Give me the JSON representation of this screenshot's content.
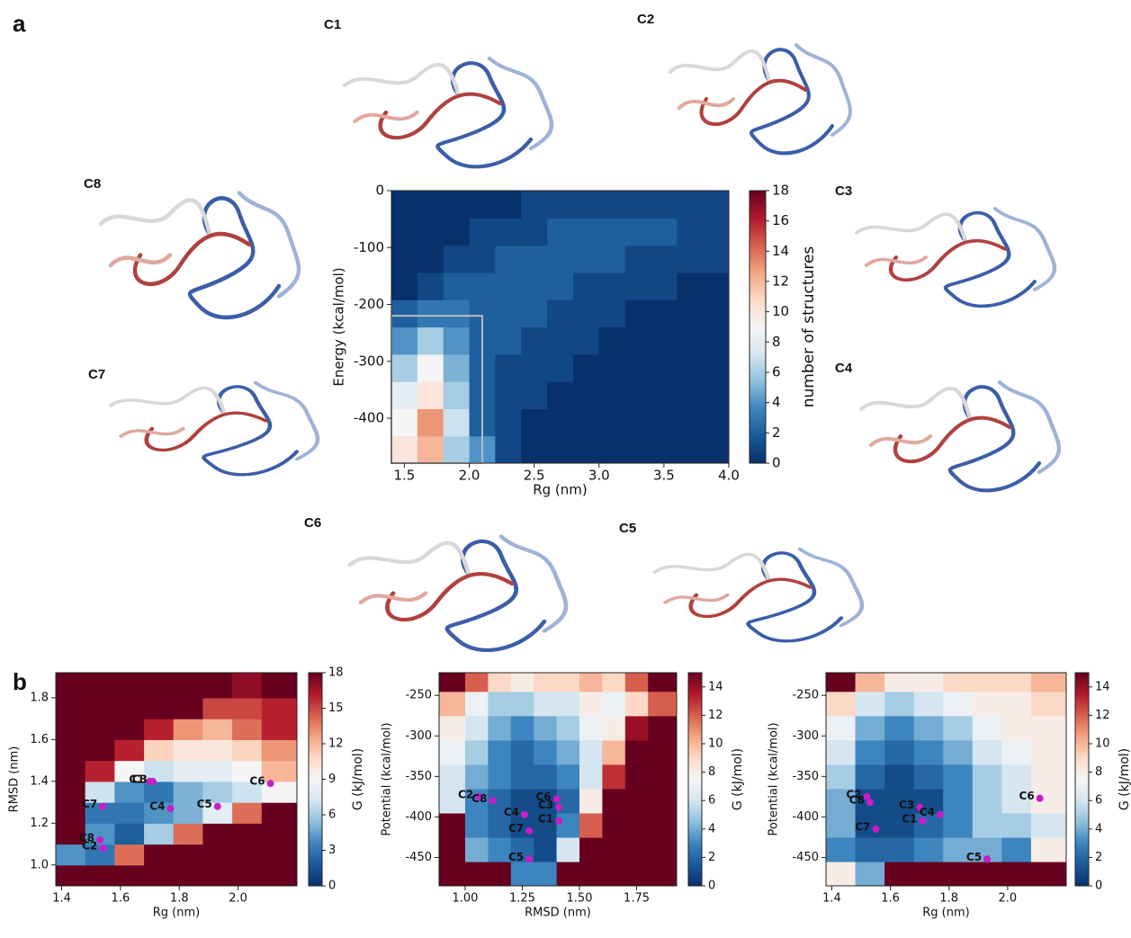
{
  "panel_labels": [
    "a",
    "b"
  ],
  "structure_labels": [
    "C1",
    "C2",
    "C3",
    "C4",
    "C5",
    "C6",
    "C7",
    "C8"
  ],
  "chart_data": [
    {
      "type": "heatmap",
      "xlabel": "Rg (nm)",
      "ylabel": "Energy (kcal/mol)",
      "colorbar_label": "number of structures",
      "xlim": [
        1.4,
        4.0
      ],
      "ylim": [
        -479,
        0
      ],
      "clim": [
        0,
        18
      ],
      "xticks": [
        1.5,
        {
          "value": 2,
          "label": "2.0"
        },
        2.5,
        {
          "value": 3,
          "label": "3.0"
        },
        3.5,
        {
          "value": 4,
          "label": "4.0"
        }
      ],
      "yticks": [
        0,
        -100,
        -200,
        -300,
        -400
      ],
      "cticks": [
        0,
        2,
        4,
        6,
        8,
        10,
        12,
        14,
        16,
        18
      ],
      "colors": [
        "#08306b",
        "#1a5a9a",
        "#3d85bf",
        "#8fc0de",
        "#d5e6f1",
        "#f5f5f5",
        "#fcd9c6",
        "#f4a582",
        "#d6604d",
        "#b2182b",
        "#67001f"
      ],
      "xbins": [
        1.4,
        1.6,
        1.8,
        2.0,
        2.2,
        2.4,
        2.6,
        2.8,
        3.0,
        3.2,
        3.4,
        3.6,
        3.8,
        4.0
      ],
      "ybins": [
        -479,
        -431.1,
        -383.2,
        -335.3,
        -287.4,
        -239.5,
        -191.6,
        -143.7,
        -95.8,
        -47.9,
        0
      ],
      "z": [
        [
          10,
          12,
          6,
          4,
          1,
          0,
          0,
          0,
          0,
          0,
          0,
          0,
          0
        ],
        [
          9,
          13,
          7,
          2,
          1,
          0,
          0,
          0,
          0,
          0,
          0,
          0,
          0
        ],
        [
          8,
          10,
          6,
          2,
          1,
          1,
          0,
          0,
          0,
          0,
          0,
          0,
          0
        ],
        [
          6,
          9,
          5,
          2,
          1,
          1,
          1,
          0,
          0,
          0,
          0,
          0,
          0
        ],
        [
          4,
          6,
          4,
          2,
          2,
          1,
          1,
          1,
          0,
          0,
          0,
          0,
          0
        ],
        [
          2,
          3,
          3,
          2,
          2,
          2,
          1,
          1,
          1,
          0,
          0,
          0,
          0
        ],
        [
          0,
          1,
          2,
          2,
          2,
          2,
          2,
          1,
          1,
          1,
          1,
          0,
          0
        ],
        [
          0,
          0,
          1,
          1,
          2,
          2,
          2,
          2,
          2,
          1,
          1,
          1,
          1
        ],
        [
          0,
          0,
          0,
          1,
          1,
          1,
          2,
          2,
          2,
          2,
          2,
          1,
          1
        ],
        [
          0,
          0,
          0,
          0,
          0,
          1,
          1,
          1,
          1,
          1,
          1,
          1,
          1
        ]
      ],
      "box": {
        "x": [
          1.4,
          2.1
        ],
        "y": [
          -479,
          -220
        ]
      }
    },
    {
      "type": "contour",
      "xlabel": "Rg (nm)",
      "ylabel": "RMSD (nm)",
      "colorbar_label": "G (kJ/mol)",
      "xlim": [
        1.38,
        2.2
      ],
      "ylim": [
        0.9,
        1.92
      ],
      "clim": [
        0,
        18
      ],
      "xticks": [
        1.4,
        1.6,
        1.8,
        {
          "value": 2,
          "label": "2.0"
        }
      ],
      "yticks": [
        {
          "value": 1,
          "label": "1.0"
        },
        1.2,
        1.4,
        1.6,
        1.8
      ],
      "cticks": [
        0,
        3,
        6,
        9,
        12,
        15,
        18
      ],
      "colors": [
        "#08306b",
        "#1a5a9a",
        "#3d85bf",
        "#8fc0de",
        "#d5e6f1",
        "#f5f5f5",
        "#fcd9c6",
        "#f4a582",
        "#d6604d",
        "#b2182b",
        "#67001f"
      ],
      "xbins": [
        1.38,
        1.48,
        1.58,
        1.68,
        1.78,
        1.88,
        1.98,
        2.08,
        2.2
      ],
      "ybins": [
        0.9,
        1.0,
        1.1,
        1.2,
        1.3,
        1.4,
        1.5,
        1.6,
        1.7,
        1.8,
        1.92
      ],
      "z": [
        [
          18,
          18,
          18,
          18,
          18,
          18,
          18,
          18
        ],
        [
          4,
          3,
          14,
          18,
          18,
          18,
          18,
          18
        ],
        [
          18,
          4,
          2,
          6,
          14,
          18,
          18,
          18
        ],
        [
          18,
          3,
          3,
          4,
          5,
          8,
          14,
          18
        ],
        [
          18,
          7,
          4,
          3,
          5,
          6,
          7,
          9
        ],
        [
          18,
          16,
          9,
          7,
          8,
          8,
          9,
          12
        ],
        [
          18,
          18,
          16,
          11,
          10,
          10,
          11,
          13
        ],
        [
          18,
          18,
          18,
          16,
          13,
          12,
          14,
          16
        ],
        [
          18,
          18,
          18,
          18,
          18,
          15,
          15,
          16
        ],
        [
          18,
          18,
          18,
          18,
          18,
          18,
          17,
          18
        ]
      ],
      "point_color": "#c81ec8",
      "points": [
        {
          "label": "C1",
          "x": 1.7,
          "y": 1.4
        },
        {
          "label": "C3",
          "x": 1.71,
          "y": 1.4
        },
        {
          "label": "C7",
          "x": 1.54,
          "y": 1.28
        },
        {
          "label": "C4",
          "x": 1.77,
          "y": 1.27
        },
        {
          "label": "C5",
          "x": 1.93,
          "y": 1.28
        },
        {
          "label": "C6",
          "x": 2.11,
          "y": 1.39
        },
        {
          "label": "C8",
          "x": 1.53,
          "y": 1.12
        },
        {
          "label": "C2",
          "x": 1.54,
          "y": 1.08
        }
      ]
    },
    {
      "type": "contour",
      "xlabel": "RMSD (nm)",
      "ylabel": "Potential (kcal/mol)",
      "colorbar_label": "G (kJ/mol)",
      "xlim": [
        0.886,
        1.925
      ],
      "ylim": [
        -485,
        -222
      ],
      "clim": [
        0,
        15
      ],
      "xticks": [
        {
          "value": 1,
          "label": "1.00"
        },
        1.25,
        {
          "value": 1.5,
          "label": "1.50"
        },
        1.75
      ],
      "yticks": [
        -250,
        -300,
        -350,
        -400,
        -450
      ],
      "cticks": [
        0,
        2,
        4,
        6,
        8,
        10,
        12,
        14
      ],
      "colors": [
        "#08306b",
        "#1a5a9a",
        "#3d85bf",
        "#8fc0de",
        "#d5e6f1",
        "#f5f5f5",
        "#fcd9c6",
        "#f4a582",
        "#d6604d",
        "#b2182b",
        "#67001f"
      ],
      "xbins": [
        0.886,
        1.0,
        1.1,
        1.2,
        1.3,
        1.4,
        1.5,
        1.6,
        1.7,
        1.8,
        1.925
      ],
      "ybins": [
        -485,
        -455,
        -425,
        -395,
        -365,
        -335,
        -305,
        -275,
        -245,
        -222
      ],
      "z": [
        [
          15,
          15,
          15,
          3,
          3,
          15,
          15,
          15,
          15,
          15
        ],
        [
          15,
          4,
          3,
          2,
          1,
          6,
          15,
          15,
          15,
          15
        ],
        [
          15,
          3,
          2,
          1,
          1,
          3,
          12,
          15,
          15,
          15
        ],
        [
          6,
          3,
          2,
          1,
          1,
          2,
          8,
          15,
          15,
          15
        ],
        [
          6,
          4,
          3,
          2,
          2,
          3,
          6,
          13,
          15,
          15
        ],
        [
          7,
          5,
          3,
          2,
          3,
          4,
          6,
          10,
          15,
          15
        ],
        [
          8,
          6,
          4,
          3,
          4,
          5,
          7,
          8,
          14,
          15
        ],
        [
          10,
          7,
          5,
          5,
          6,
          6,
          8,
          7,
          9,
          12
        ],
        [
          15,
          12,
          9,
          8,
          9,
          9,
          10,
          9,
          12,
          15
        ]
      ],
      "point_color": "#c81ec8",
      "points": [
        {
          "label": "C2",
          "x": 1.06,
          "y": -375
        },
        {
          "label": "C8",
          "x": 1.12,
          "y": -380
        },
        {
          "label": "C6",
          "x": 1.4,
          "y": -378
        },
        {
          "label": "C3",
          "x": 1.41,
          "y": -388
        },
        {
          "label": "C4",
          "x": 1.26,
          "y": -397
        },
        {
          "label": "C1",
          "x": 1.41,
          "y": -405
        },
        {
          "label": "C7",
          "x": 1.28,
          "y": -417
        },
        {
          "label": "C5",
          "x": 1.28,
          "y": -452
        }
      ]
    },
    {
      "type": "contour",
      "xlabel": "Rg (nm)",
      "ylabel": "Potential (kcal/mol)",
      "colorbar_label": "G (kJ/mol)",
      "xlim": [
        1.38,
        2.2
      ],
      "ylim": [
        -485,
        -222
      ],
      "clim": [
        0,
        15
      ],
      "xticks": [
        1.4,
        1.6,
        1.8,
        {
          "value": 2,
          "label": "2.0"
        }
      ],
      "yticks": [
        -250,
        -300,
        -350,
        -400,
        -450
      ],
      "cticks": [
        0,
        2,
        4,
        6,
        8,
        10,
        12,
        14
      ],
      "colors": [
        "#08306b",
        "#1a5a9a",
        "#3d85bf",
        "#8fc0de",
        "#d5e6f1",
        "#f5f5f5",
        "#fcd9c6",
        "#f4a582",
        "#d6604d",
        "#b2182b",
        "#67001f"
      ],
      "xbins": [
        1.38,
        1.48,
        1.58,
        1.68,
        1.78,
        1.88,
        1.98,
        2.08,
        2.2
      ],
      "ybins": [
        -485,
        -455,
        -425,
        -395,
        -365,
        -335,
        -305,
        -275,
        -245,
        -222
      ],
      "z": [
        [
          8,
          4,
          15,
          15,
          15,
          15,
          15,
          15
        ],
        [
          3,
          2,
          2,
          3,
          4,
          4,
          3,
          8
        ],
        [
          4,
          1,
          1,
          2,
          3,
          5,
          5,
          6
        ],
        [
          4,
          1,
          1,
          1,
          3,
          5,
          6,
          8
        ],
        [
          5,
          2,
          1,
          2,
          3,
          5,
          6,
          8
        ],
        [
          6,
          3,
          2,
          3,
          4,
          6,
          7,
          8
        ],
        [
          7,
          4,
          3,
          4,
          5,
          7,
          8,
          8
        ],
        [
          9,
          6,
          5,
          6,
          7,
          8,
          8,
          9
        ],
        [
          15,
          10,
          8,
          8,
          9,
          9,
          9,
          10
        ]
      ],
      "point_color": "#c81ec8",
      "points": [
        {
          "label": "C2",
          "x": 1.52,
          "y": -375
        },
        {
          "label": "C8",
          "x": 1.53,
          "y": -382
        },
        {
          "label": "C3",
          "x": 1.7,
          "y": -388
        },
        {
          "label": "C1",
          "x": 1.71,
          "y": -405
        },
        {
          "label": "C4",
          "x": 1.77,
          "y": -397
        },
        {
          "label": "C7",
          "x": 1.55,
          "y": -415
        },
        {
          "label": "C5",
          "x": 1.93,
          "y": -452
        },
        {
          "label": "C6",
          "x": 2.11,
          "y": -377
        }
      ]
    }
  ]
}
